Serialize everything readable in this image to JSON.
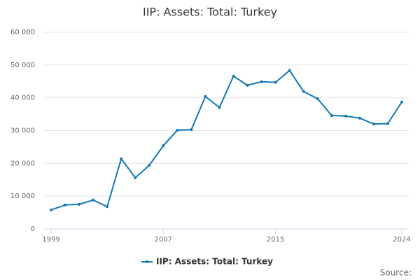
{
  "chart_data": {
    "type": "line",
    "title": "IIP: Assets: Total: Turkey",
    "x": [
      1999,
      2000,
      2001,
      2002,
      2003,
      2004,
      2005,
      2006,
      2007,
      2008,
      2009,
      2010,
      2011,
      2012,
      2013,
      2014,
      2015,
      2016,
      2017,
      2018,
      2019,
      2020,
      2021,
      2022,
      2023,
      2024
    ],
    "series": [
      {
        "name": "IIP: Assets: Total: Turkey",
        "color": "#1277b5",
        "values": [
          5800,
          7300,
          7500,
          8800,
          6800,
          21400,
          15600,
          19400,
          25400,
          30100,
          30300,
          40400,
          37000,
          46600,
          43800,
          44900,
          44700,
          48300,
          41900,
          39700,
          34600,
          34400,
          33800,
          32000,
          32100,
          38700
        ]
      }
    ],
    "xlim": [
      1998.5,
      2024.5
    ],
    "xticks": [
      1999,
      2007,
      2015,
      2024
    ],
    "ylim": [
      0,
      60000
    ],
    "yticks": [
      0,
      {
        "value": 10000,
        "label": "10 000"
      },
      {
        "value": 20000,
        "label": "20 000"
      },
      {
        "value": 30000,
        "label": "30 000"
      },
      {
        "value": 40000,
        "label": "40 000"
      },
      {
        "value": 50000,
        "label": "50 000"
      },
      {
        "value": 60000,
        "label": "60 000"
      }
    ],
    "grid": true,
    "legend": "bottom",
    "source": "Source:"
  }
}
